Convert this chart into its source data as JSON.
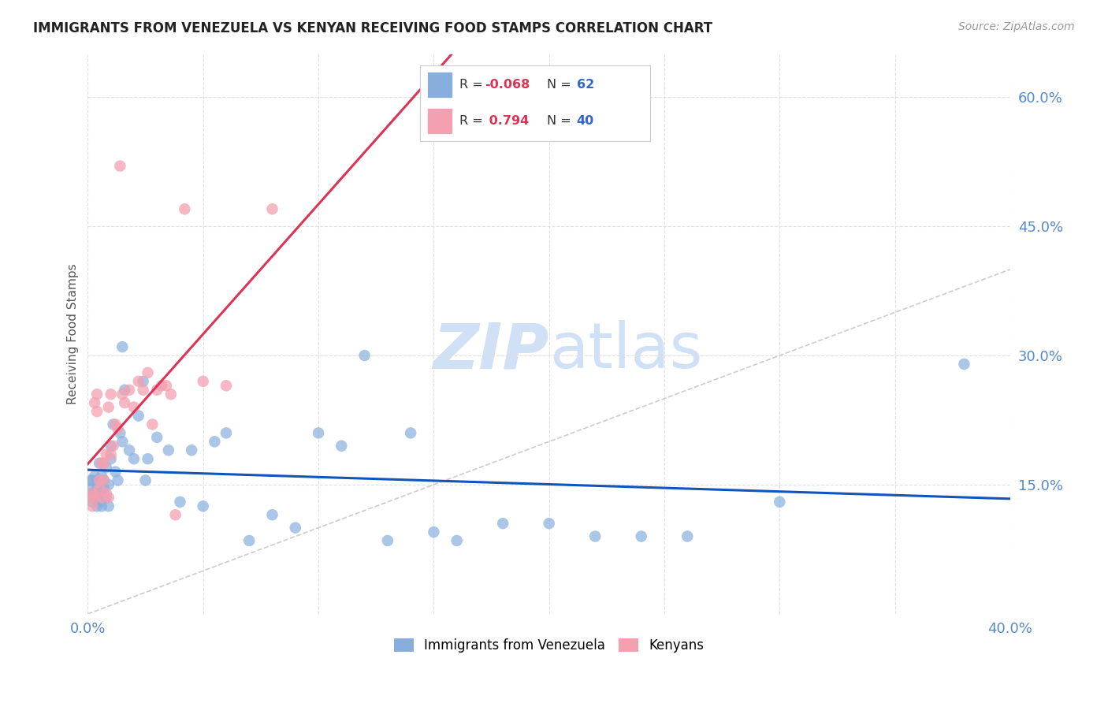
{
  "title": "IMMIGRANTS FROM VENEZUELA VS KENYAN RECEIVING FOOD STAMPS CORRELATION CHART",
  "source": "Source: ZipAtlas.com",
  "ylabel": "Receiving Food Stamps",
  "xlim": [
    0.0,
    0.4
  ],
  "ylim": [
    0.0,
    0.65
  ],
  "xticks": [
    0.0,
    0.05,
    0.1,
    0.15,
    0.2,
    0.25,
    0.3,
    0.35,
    0.4
  ],
  "xticklabels": [
    "0.0%",
    "",
    "",
    "",
    "",
    "",
    "",
    "",
    "40.0%"
  ],
  "yticks": [
    0.15,
    0.3,
    0.45,
    0.6
  ],
  "yticklabels": [
    "15.0%",
    "30.0%",
    "45.0%",
    "60.0%"
  ],
  "legend_R_venezuela": "-0.068",
  "legend_N_venezuela": "62",
  "legend_R_kenyan": "0.794",
  "legend_N_kenyan": "40",
  "blue_color": "#88aedd",
  "pink_color": "#f4a0b0",
  "regression_blue": "#1155bb",
  "regression_pink": "#dd3355",
  "dashed_line_color": "#cccccc",
  "grid_color": "#e0e0e0",
  "title_color": "#222222",
  "tick_color": "#5588cc",
  "watermark_color": "#d0e0f5",
  "venezuela_x": [
    0.001,
    0.001,
    0.002,
    0.002,
    0.002,
    0.003,
    0.003,
    0.003,
    0.004,
    0.004,
    0.004,
    0.005,
    0.005,
    0.005,
    0.006,
    0.006,
    0.006,
    0.007,
    0.007,
    0.008,
    0.008,
    0.009,
    0.009,
    0.01,
    0.01,
    0.011,
    0.012,
    0.013,
    0.014,
    0.015,
    0.015,
    0.016,
    0.018,
    0.02,
    0.022,
    0.024,
    0.026,
    0.03,
    0.035,
    0.04,
    0.045,
    0.05,
    0.06,
    0.07,
    0.08,
    0.09,
    0.1,
    0.11,
    0.12,
    0.13,
    0.14,
    0.15,
    0.16,
    0.18,
    0.2,
    0.22,
    0.24,
    0.26,
    0.3,
    0.38,
    0.025,
    0.055
  ],
  "venezuela_y": [
    0.155,
    0.145,
    0.14,
    0.13,
    0.155,
    0.16,
    0.135,
    0.14,
    0.155,
    0.125,
    0.145,
    0.175,
    0.14,
    0.13,
    0.16,
    0.14,
    0.125,
    0.155,
    0.145,
    0.17,
    0.135,
    0.15,
    0.125,
    0.18,
    0.195,
    0.22,
    0.165,
    0.155,
    0.21,
    0.2,
    0.31,
    0.26,
    0.19,
    0.18,
    0.23,
    0.27,
    0.18,
    0.205,
    0.19,
    0.13,
    0.19,
    0.125,
    0.21,
    0.085,
    0.115,
    0.1,
    0.21,
    0.195,
    0.3,
    0.085,
    0.21,
    0.095,
    0.085,
    0.105,
    0.105,
    0.09,
    0.09,
    0.09,
    0.13,
    0.29,
    0.155,
    0.2
  ],
  "kenyan_x": [
    0.001,
    0.002,
    0.002,
    0.003,
    0.003,
    0.004,
    0.004,
    0.005,
    0.005,
    0.006,
    0.006,
    0.007,
    0.007,
    0.008,
    0.008,
    0.009,
    0.009,
    0.01,
    0.011,
    0.012,
    0.013,
    0.015,
    0.016,
    0.018,
    0.02,
    0.022,
    0.024,
    0.026,
    0.028,
    0.03,
    0.032,
    0.034,
    0.036,
    0.038,
    0.042,
    0.05,
    0.06,
    0.08,
    0.01,
    0.014
  ],
  "kenyan_y": [
    0.135,
    0.14,
    0.125,
    0.245,
    0.135,
    0.255,
    0.235,
    0.145,
    0.155,
    0.175,
    0.135,
    0.175,
    0.155,
    0.185,
    0.14,
    0.24,
    0.135,
    0.185,
    0.195,
    0.22,
    0.215,
    0.255,
    0.245,
    0.26,
    0.24,
    0.27,
    0.26,
    0.28,
    0.22,
    0.26,
    0.265,
    0.265,
    0.255,
    0.115,
    0.47,
    0.27,
    0.265,
    0.47,
    0.255,
    0.52
  ]
}
